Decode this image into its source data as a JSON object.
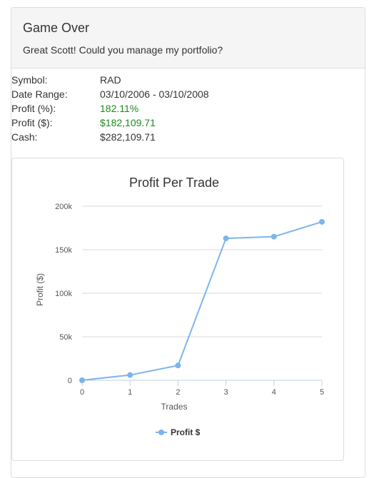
{
  "panel": {
    "title": "Game Over",
    "subtitle": "Great Scott! Could you manage my portfolio?"
  },
  "stats": [
    {
      "label": "Symbol:",
      "value": "RAD"
    },
    {
      "label": "Date Range:",
      "value": "03/10/2006 - 03/10/2008"
    },
    {
      "label": "Profit (%):",
      "value": "182.11%",
      "color": "#1e8a1e"
    },
    {
      "label": "Profit ($):",
      "value": "$182,109.71",
      "color": "#1e8a1e"
    },
    {
      "label": "Cash:",
      "value": "$282,109.71"
    }
  ],
  "chart_data": {
    "type": "line",
    "title": "Profit Per Trade",
    "xlabel": "Trades",
    "ylabel": "Profit ($)",
    "x": [
      0,
      1,
      2,
      3,
      4,
      5
    ],
    "xticks": [
      "0",
      "1",
      "2",
      "3",
      "4",
      "5"
    ],
    "ylim": [
      0,
      200000
    ],
    "yticks": [
      "0",
      "50k",
      "100k",
      "150k",
      "200k"
    ],
    "grid": true,
    "legend": "bottom-center",
    "series": [
      {
        "name": "Profit $",
        "color": "#7cb5ec",
        "values": [
          0,
          6000,
          17000,
          163000,
          165000,
          182000
        ]
      }
    ]
  }
}
